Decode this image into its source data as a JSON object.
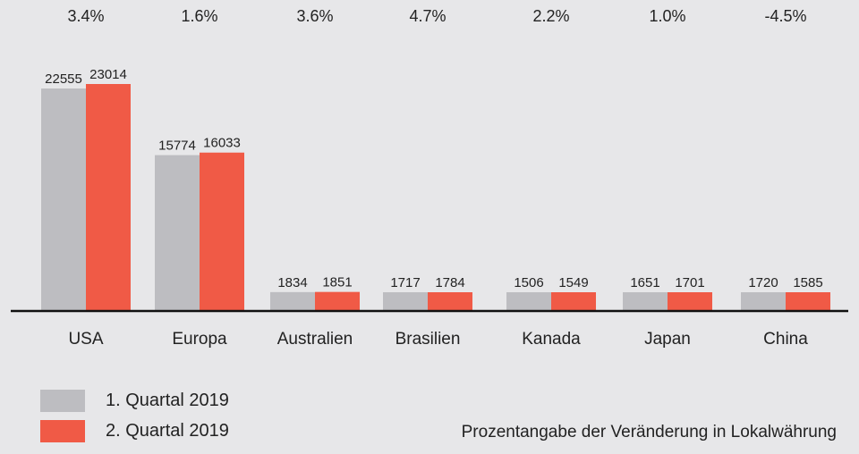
{
  "chart_data": {
    "type": "bar",
    "categories": [
      "USA",
      "Europa",
      "Australien",
      "Brasilien",
      "Kanada",
      "Japan",
      "China"
    ],
    "series": [
      {
        "name": "1. Quartal 2019",
        "color": "#bdbdc1",
        "values": [
          22555,
          15774,
          1834,
          1717,
          1506,
          1651,
          1720
        ]
      },
      {
        "name": "2. Quartal 2019",
        "color": "#f05a46",
        "values": [
          23014,
          16033,
          1851,
          1784,
          1549,
          1701,
          1585
        ]
      }
    ],
    "change_labels": [
      "3.4%",
      "1.6%",
      "3.6%",
      "4.7%",
      "2.2%",
      "1.0%",
      "-4.5%"
    ],
    "note": "Prozentangabe der Veränderung in Lokalwährung",
    "grid": false,
    "legend": "bottom-left",
    "ylim": [
      0,
      23014
    ]
  }
}
